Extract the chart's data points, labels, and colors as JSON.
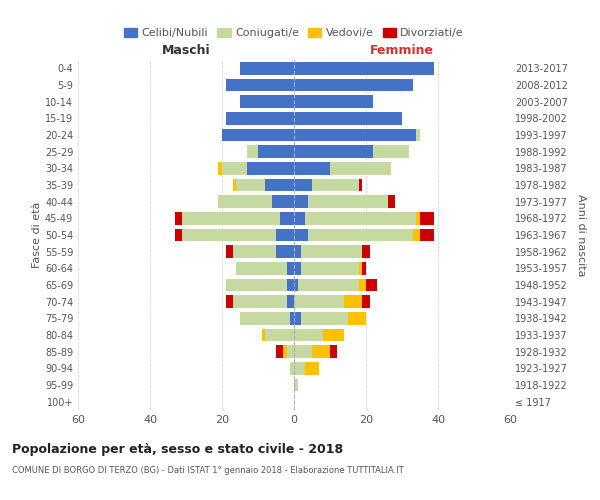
{
  "age_groups": [
    "100+",
    "95-99",
    "90-94",
    "85-89",
    "80-84",
    "75-79",
    "70-74",
    "65-69",
    "60-64",
    "55-59",
    "50-54",
    "45-49",
    "40-44",
    "35-39",
    "30-34",
    "25-29",
    "20-24",
    "15-19",
    "10-14",
    "5-9",
    "0-4"
  ],
  "birth_years": [
    "≤ 1917",
    "1918-1922",
    "1923-1927",
    "1928-1932",
    "1933-1937",
    "1938-1942",
    "1943-1947",
    "1948-1952",
    "1953-1957",
    "1958-1962",
    "1963-1967",
    "1968-1972",
    "1973-1977",
    "1978-1982",
    "1983-1987",
    "1988-1992",
    "1993-1997",
    "1998-2002",
    "2003-2007",
    "2008-2012",
    "2013-2017"
  ],
  "male_celibe": [
    0,
    0,
    0,
    0,
    0,
    1,
    2,
    2,
    2,
    5,
    5,
    4,
    6,
    8,
    13,
    10,
    20,
    19,
    15,
    19,
    15
  ],
  "male_coniugato": [
    0,
    0,
    1,
    2,
    8,
    14,
    15,
    17,
    14,
    12,
    26,
    27,
    15,
    8,
    7,
    3,
    0,
    0,
    0,
    0,
    0
  ],
  "male_vedovo": [
    0,
    0,
    0,
    1,
    1,
    0,
    0,
    0,
    0,
    0,
    0,
    0,
    0,
    1,
    1,
    0,
    0,
    0,
    0,
    0,
    0
  ],
  "male_divorziato": [
    0,
    0,
    0,
    2,
    0,
    0,
    2,
    0,
    0,
    2,
    2,
    2,
    0,
    0,
    0,
    0,
    0,
    0,
    0,
    0,
    0
  ],
  "female_celibe": [
    0,
    0,
    0,
    0,
    0,
    2,
    0,
    1,
    2,
    2,
    4,
    3,
    4,
    5,
    10,
    22,
    34,
    30,
    22,
    33,
    39
  ],
  "female_coniugato": [
    0,
    1,
    3,
    5,
    8,
    13,
    14,
    17,
    16,
    17,
    29,
    31,
    22,
    13,
    17,
    10,
    1,
    0,
    0,
    0,
    0
  ],
  "female_vedovo": [
    0,
    0,
    4,
    5,
    6,
    5,
    5,
    2,
    1,
    0,
    2,
    1,
    0,
    0,
    0,
    0,
    0,
    0,
    0,
    0,
    0
  ],
  "female_divorziato": [
    0,
    0,
    0,
    2,
    0,
    0,
    2,
    3,
    1,
    2,
    4,
    4,
    2,
    1,
    0,
    0,
    0,
    0,
    0,
    0,
    0
  ],
  "color_celibe": "#4472c4",
  "color_coniugato": "#c5d9a0",
  "color_vedovo": "#ffc000",
  "color_divorziato": "#cc0000",
  "xlim": 60,
  "title": "Popolazione per età, sesso e stato civile - 2018",
  "subtitle": "COMUNE DI BORGO DI TERZO (BG) - Dati ISTAT 1° gennaio 2018 - Elaborazione TUTTITALIA.IT",
  "ylabel_left": "Fasce di età",
  "ylabel_right": "Anni di nascita",
  "xlabel_left": "Maschi",
  "xlabel_right": "Femmine",
  "bg_color": "#ffffff",
  "grid_color": "#cccccc",
  "text_color": "#555555",
  "title_color": "#222222",
  "maschi_color": "#333333",
  "femmine_color": "#cc3333",
  "centerline_color": "#aaaacc"
}
